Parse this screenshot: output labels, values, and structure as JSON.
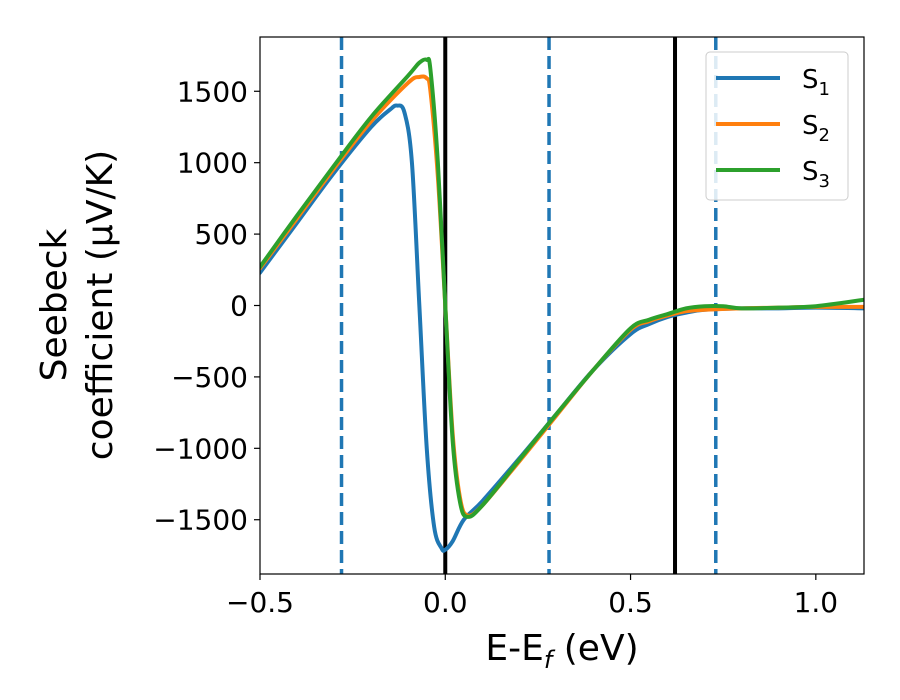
{
  "chart_data": {
    "type": "line",
    "title": "",
    "xlabel": {
      "main": "E-E",
      "sub": "f",
      "suffix": " (eV)"
    },
    "ylabel": {
      "line1": "Seebeck",
      "line2": "coefficient  (μV/K)"
    },
    "xlim": [
      -0.5,
      1.13
    ],
    "ylim": [
      -1880,
      1880
    ],
    "xticks": [
      -0.5,
      0.0,
      0.5,
      1.0
    ],
    "xtick_labels": [
      "−0.5",
      "0.0",
      "0.5",
      "1.0"
    ],
    "yticks": [
      -1500,
      -1000,
      -500,
      0,
      500,
      1000,
      1500
    ],
    "ytick_labels": [
      "−1500",
      "−1000",
      "−500",
      "0",
      "500",
      "1000",
      "1500"
    ],
    "grid": false,
    "legend_position": "top-right",
    "vlines": [
      {
        "x": 0.0,
        "style": "solid",
        "color": "#000000"
      },
      {
        "x": 0.62,
        "style": "solid",
        "color": "#000000"
      },
      {
        "x": -0.28,
        "style": "dashed",
        "color": "#1f77b4"
      },
      {
        "x": 0.28,
        "style": "dashed",
        "color": "#1f77b4"
      },
      {
        "x": 0.73,
        "style": "dashed",
        "color": "#1f77b4"
      }
    ],
    "series": [
      {
        "name": "S",
        "sub": "1",
        "color": "#1f77b4",
        "x": [
          -0.5,
          -0.4,
          -0.3,
          -0.2,
          -0.15,
          -0.13,
          -0.11,
          -0.09,
          -0.07,
          -0.05,
          -0.03,
          -0.01,
          0.0,
          0.02,
          0.05,
          0.1,
          0.2,
          0.3,
          0.4,
          0.5,
          0.55,
          0.6,
          0.65,
          0.7,
          0.8,
          0.9,
          1.0,
          1.13
        ],
        "y": [
          230,
          580,
          930,
          1250,
          1370,
          1400,
          1350,
          1000,
          0,
          -1000,
          -1550,
          -1700,
          -1710,
          -1650,
          -1500,
          -1370,
          -1070,
          -760,
          -450,
          -200,
          -130,
          -80,
          -50,
          -30,
          -20,
          -20,
          -15,
          -20
        ]
      },
      {
        "name": "S",
        "sub": "2",
        "color": "#ff7f0e",
        "x": [
          -0.5,
          -0.4,
          -0.3,
          -0.2,
          -0.1,
          -0.07,
          -0.05,
          -0.04,
          -0.02,
          0.0,
          0.02,
          0.04,
          0.06,
          0.1,
          0.2,
          0.3,
          0.4,
          0.5,
          0.55,
          0.6,
          0.65,
          0.7,
          0.8,
          0.9,
          1.0,
          1.13
        ],
        "y": [
          260,
          610,
          960,
          1290,
          1560,
          1600,
          1590,
          1500,
          900,
          0,
          -900,
          -1350,
          -1470,
          -1400,
          -1090,
          -770,
          -450,
          -170,
          -110,
          -70,
          -40,
          -30,
          -20,
          -15,
          -10,
          -10
        ]
      },
      {
        "name": "S",
        "sub": "3",
        "color": "#2ca02c",
        "x": [
          -0.5,
          -0.4,
          -0.3,
          -0.2,
          -0.1,
          -0.07,
          -0.05,
          -0.04,
          -0.02,
          0.0,
          0.02,
          0.04,
          0.06,
          0.1,
          0.2,
          0.3,
          0.4,
          0.5,
          0.55,
          0.6,
          0.65,
          0.7,
          0.75,
          0.8,
          0.9,
          1.0,
          1.13
        ],
        "y": [
          270,
          630,
          980,
          1320,
          1610,
          1700,
          1720,
          1650,
          1000,
          0,
          -950,
          -1380,
          -1480,
          -1400,
          -1080,
          -760,
          -450,
          -160,
          -100,
          -60,
          -20,
          -5,
          -5,
          -20,
          -15,
          -5,
          40
        ]
      }
    ]
  }
}
